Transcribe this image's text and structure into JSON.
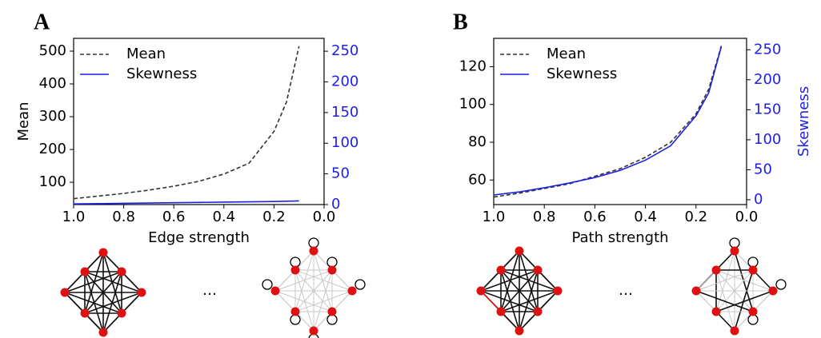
{
  "chart_data": [
    {
      "type": "line",
      "panel_label": "A",
      "xlabel": "Edge strength",
      "ylabel": "Mean",
      "x": [
        1.0,
        0.9,
        0.8,
        0.7,
        0.6,
        0.5,
        0.4,
        0.3,
        0.2,
        0.15,
        0.1
      ],
      "series": [
        {
          "name": "Mean",
          "color": "#333333",
          "dash": true,
          "values": [
            50,
            58,
            66,
            76,
            88,
            103,
            125,
            158,
            255,
            345,
            515
          ]
        },
        {
          "name": "Skewness",
          "color": "#1f1fe6",
          "axis": "y2",
          "values": [
            1,
            1.5,
            2,
            2.5,
            3,
            3.5,
            4,
            4.5,
            5,
            5.5,
            6
          ]
        }
      ],
      "xlim": [
        1,
        0
      ],
      "xticks": [
        {
          "value": 1,
          "label": "1.0"
        },
        0.8,
        0.6,
        0.4,
        0.2,
        {
          "value": 0,
          "label": "0.0"
        }
      ],
      "ylim": [
        32,
        539
      ],
      "yticks": [
        100,
        200,
        300,
        400,
        500
      ],
      "y2lim": [
        0,
        271
      ],
      "y2ticks": [
        0,
        50,
        100,
        150,
        200,
        250
      ],
      "legend": "upper left",
      "diagram_ellipsis": "…"
    },
    {
      "type": "line",
      "panel_label": "B",
      "xlabel": "Path strength",
      "y2label": "Skewness",
      "x": [
        1.0,
        0.9,
        0.8,
        0.7,
        0.6,
        0.5,
        0.4,
        0.3,
        0.2,
        0.15,
        0.1
      ],
      "series": [
        {
          "name": "Mean",
          "color": "#333333",
          "dash": true,
          "values": [
            51,
            53,
            55.5,
            58,
            62,
            66,
            72,
            80,
            95,
            108,
            131
          ]
        },
        {
          "name": "Skewness",
          "color": "#1f1fe6",
          "axis": "y2",
          "values": [
            8,
            13,
            20,
            28,
            37,
            49,
            66,
            90,
            140,
            178,
            255
          ]
        }
      ],
      "xlim": [
        1,
        0
      ],
      "xticks": [
        {
          "value": 1,
          "label": "1.0"
        },
        0.8,
        0.6,
        0.4,
        0.2,
        {
          "value": 0,
          "label": "0.0"
        }
      ],
      "ylim": [
        47,
        135
      ],
      "yticks": [
        60,
        80,
        100,
        120
      ],
      "y2lim": [
        -8,
        269
      ],
      "y2ticks": [
        0,
        50,
        100,
        150,
        200,
        250
      ],
      "legend": "upper left",
      "diagram_ellipsis": "…"
    }
  ]
}
